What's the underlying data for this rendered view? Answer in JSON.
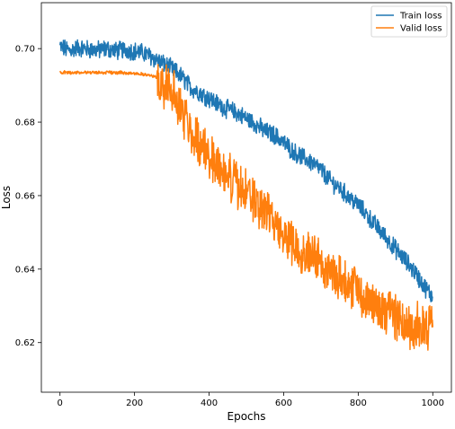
{
  "chart_data": {
    "type": "line",
    "xlabel": "Epochs",
    "ylabel": "Loss",
    "xlim": [
      -50,
      1050
    ],
    "ylim": [
      0.6065,
      0.7125
    ],
    "xticks": [
      0,
      200,
      400,
      600,
      800,
      1000
    ],
    "yticks": [
      0.62,
      0.64,
      0.66,
      0.68,
      0.7
    ],
    "ytick_labels": [
      "0.62",
      "0.64",
      "0.66",
      "0.68",
      "0.70"
    ],
    "grid": false,
    "legend_position": "top-right",
    "series": [
      {
        "name": "Train loss",
        "color": "#1f77b4",
        "x": [
          0,
          25,
          50,
          75,
          100,
          125,
          150,
          175,
          200,
          225,
          250,
          275,
          300,
          325,
          350,
          375,
          400,
          425,
          450,
          475,
          500,
          525,
          550,
          575,
          600,
          625,
          650,
          675,
          700,
          725,
          750,
          775,
          800,
          825,
          850,
          875,
          900,
          925,
          950,
          975,
          1000
        ],
        "y": [
          0.7005,
          0.6995,
          0.7003,
          0.6998,
          0.6996,
          0.7,
          0.6994,
          0.6997,
          0.6993,
          0.6988,
          0.6975,
          0.696,
          0.6945,
          0.6925,
          0.6895,
          0.688,
          0.6865,
          0.6848,
          0.6835,
          0.6825,
          0.681,
          0.6795,
          0.6775,
          0.6765,
          0.6745,
          0.672,
          0.6705,
          0.669,
          0.667,
          0.664,
          0.662,
          0.6595,
          0.6575,
          0.6545,
          0.6515,
          0.6485,
          0.6455,
          0.6425,
          0.6395,
          0.6355,
          0.6325
        ]
      },
      {
        "name": "Valid loss",
        "color": "#ff7f0e",
        "x": [
          0,
          25,
          50,
          75,
          100,
          125,
          150,
          175,
          200,
          225,
          250,
          275,
          300,
          325,
          350,
          375,
          400,
          425,
          450,
          475,
          500,
          525,
          550,
          575,
          600,
          625,
          650,
          675,
          700,
          725,
          750,
          775,
          800,
          825,
          850,
          875,
          900,
          925,
          950,
          975,
          1000
        ],
        "y": [
          0.6935,
          0.6935,
          0.6935,
          0.6935,
          0.6935,
          0.6935,
          0.6935,
          0.6934,
          0.6933,
          0.693,
          0.6925,
          0.691,
          0.6885,
          0.6835,
          0.678,
          0.674,
          0.671,
          0.6685,
          0.6655,
          0.6625,
          0.6605,
          0.658,
          0.656,
          0.6525,
          0.6495,
          0.647,
          0.6455,
          0.6445,
          0.6415,
          0.6395,
          0.638,
          0.6365,
          0.6345,
          0.6315,
          0.6295,
          0.6285,
          0.6275,
          0.625,
          0.6245,
          0.624,
          0.6235
        ]
      }
    ]
  }
}
